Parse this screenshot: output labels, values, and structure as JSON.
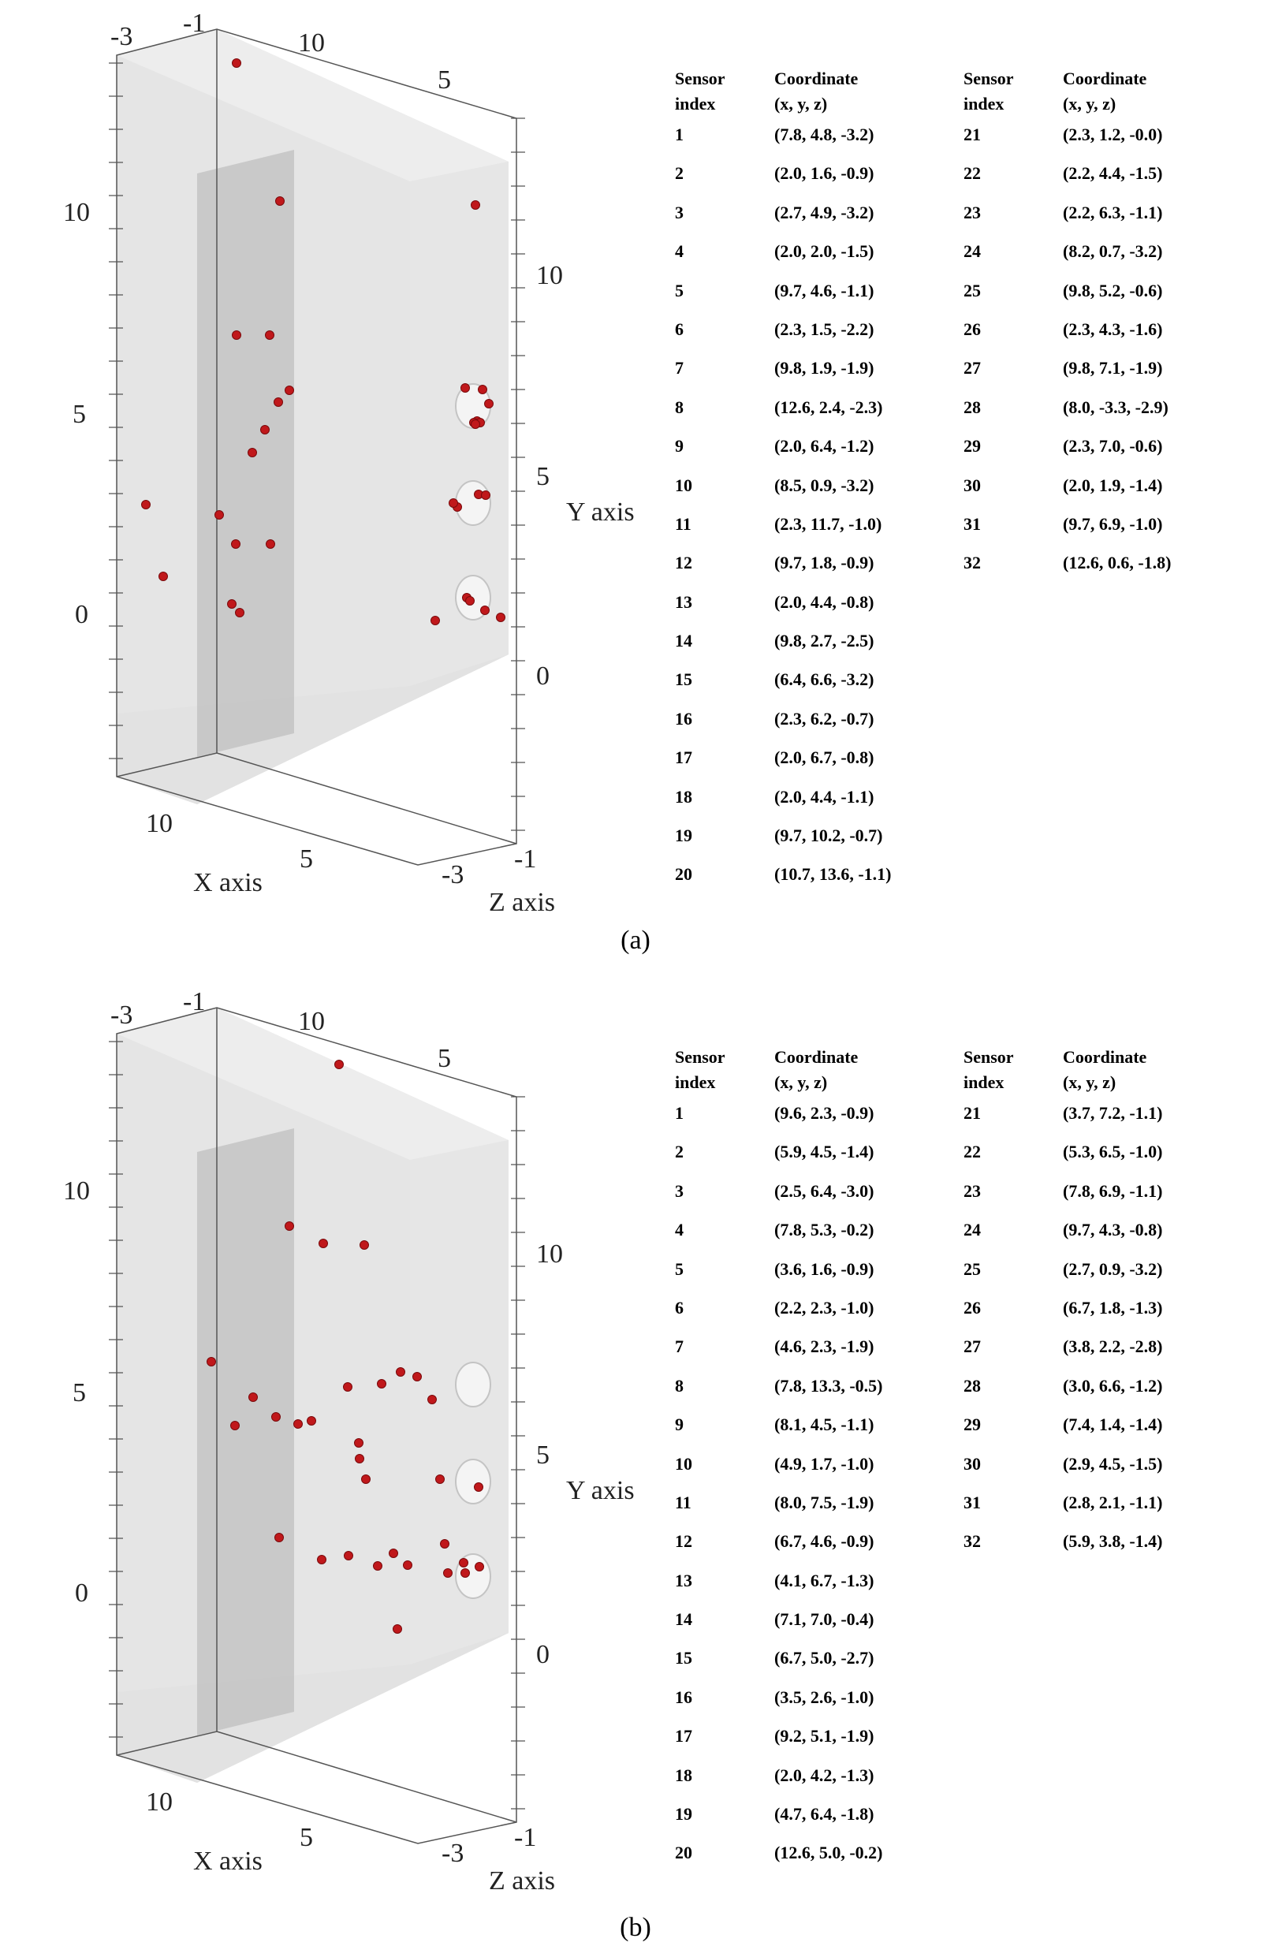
{
  "figure": {
    "panels": [
      {
        "id": "a",
        "caption": "(a)",
        "plot": {
          "x_axis_label": "X axis",
          "y_axis_label": "Y axis",
          "z_axis_label": "Z axis",
          "ticks": {
            "top_left_neg3": "-3",
            "top_left_neg1": "-1",
            "top_10": "10",
            "top_5": "5",
            "left_10": "10",
            "left_5": "5",
            "left_0": "0",
            "right_10": "10",
            "right_5": "5",
            "right_0": "0",
            "bottom_10": "10",
            "bottom_5": "5",
            "bottom_neg3": "-3",
            "bottom_neg1": "-1"
          },
          "sensor_count": 32,
          "marker_color": "#c0181b"
        },
        "table": {
          "header_sensor": [
            "Sensor",
            "index"
          ],
          "header_coord": [
            "Coordinate",
            "(x, y, z)"
          ],
          "left_rows": [
            {
              "index": "1",
              "coord": "(7.8, 4.8, -3.2)"
            },
            {
              "index": "2",
              "coord": "(2.0, 1.6, -0.9)"
            },
            {
              "index": "3",
              "coord": "(2.7, 4.9, -3.2)"
            },
            {
              "index": "4",
              "coord": "(2.0, 2.0, -1.5)"
            },
            {
              "index": "5",
              "coord": "(9.7, 4.6, -1.1)"
            },
            {
              "index": "6",
              "coord": "(2.3, 1.5, -2.2)"
            },
            {
              "index": "7",
              "coord": "(9.8, 1.9, -1.9)"
            },
            {
              "index": "8",
              "coord": "(12.6, 2.4, -2.3)"
            },
            {
              "index": "9",
              "coord": "(2.0, 6.4, -1.2)"
            },
            {
              "index": "10",
              "coord": "(8.5, 0.9, -3.2)"
            },
            {
              "index": "11",
              "coord": "(2.3, 11.7, -1.0)"
            },
            {
              "index": "12",
              "coord": "(9.7, 1.8, -0.9)"
            },
            {
              "index": "13",
              "coord": "(2.0, 4.4, -0.8)"
            },
            {
              "index": "14",
              "coord": "(9.8, 2.7, -2.5)"
            },
            {
              "index": "15",
              "coord": "(6.4, 6.6, -3.2)"
            },
            {
              "index": "16",
              "coord": "(2.3, 6.2, -0.7)"
            },
            {
              "index": "17",
              "coord": "(2.0, 6.7, -0.8)"
            },
            {
              "index": "18",
              "coord": "(2.0, 4.4, -1.1)"
            },
            {
              "index": "19",
              "coord": "(9.7, 10.2, -0.7)"
            },
            {
              "index": "20",
              "coord": "(10.7, 13.6, -1.1)"
            }
          ],
          "right_rows": [
            {
              "index": "21",
              "coord": "(2.3, 1.2, -0.0)"
            },
            {
              "index": "22",
              "coord": "(2.2, 4.4, -1.5)"
            },
            {
              "index": "23",
              "coord": "(2.2, 6.3, -1.1)"
            },
            {
              "index": "24",
              "coord": "(8.2, 0.7, -3.2)"
            },
            {
              "index": "25",
              "coord": "(9.8, 5.2, -0.6)"
            },
            {
              "index": "26",
              "coord": "(2.3, 4.3, -1.6)"
            },
            {
              "index": "27",
              "coord": "(9.8, 7.1, -1.9)"
            },
            {
              "index": "28",
              "coord": "(8.0, -3.3, -2.9)"
            },
            {
              "index": "29",
              "coord": "(2.3, 7.0, -0.6)"
            },
            {
              "index": "30",
              "coord": "(2.0, 1.9, -1.4)"
            },
            {
              "index": "31",
              "coord": "(9.7, 6.9, -1.0)"
            },
            {
              "index": "32",
              "coord": "(12.6, 0.6, -1.8)"
            }
          ]
        }
      },
      {
        "id": "b",
        "caption": "(b)",
        "plot": {
          "x_axis_label": "X axis",
          "y_axis_label": "Y axis",
          "z_axis_label": "Z axis",
          "ticks": {
            "top_left_neg3": "-3",
            "top_left_neg1": "-1",
            "top_10": "10",
            "top_5": "5",
            "left_10": "10",
            "left_5": "5",
            "left_0": "0",
            "right_10": "10",
            "right_5": "5",
            "right_0": "0",
            "bottom_10": "10",
            "bottom_5": "5",
            "bottom_neg3": "-3",
            "bottom_neg1": "-1"
          },
          "sensor_count": 32,
          "marker_color": "#c0181b"
        },
        "table": {
          "header_sensor": [
            "Sensor",
            "index"
          ],
          "header_coord": [
            "Coordinate",
            "(x, y, z)"
          ],
          "left_rows": [
            {
              "index": "1",
              "coord": "(9.6, 2.3, -0.9)"
            },
            {
              "index": "2",
              "coord": "(5.9, 4.5, -1.4)"
            },
            {
              "index": "3",
              "coord": "(2.5, 6.4, -3.0)"
            },
            {
              "index": "4",
              "coord": "(7.8, 5.3, -0.2)"
            },
            {
              "index": "5",
              "coord": "(3.6, 1.6, -0.9)"
            },
            {
              "index": "6",
              "coord": "(2.2, 2.3, -1.0)"
            },
            {
              "index": "7",
              "coord": "(4.6, 2.3, -1.9)"
            },
            {
              "index": "8",
              "coord": "(7.8, 13.3, -0.5)"
            },
            {
              "index": "9",
              "coord": "(8.1, 4.5, -1.1)"
            },
            {
              "index": "10",
              "coord": "(4.9, 1.7, -1.0)"
            },
            {
              "index": "11",
              "coord": "(8.0, 7.5, -1.9)"
            },
            {
              "index": "12",
              "coord": "(6.7, 4.6, -0.9)"
            },
            {
              "index": "13",
              "coord": "(4.1, 6.7, -1.3)"
            },
            {
              "index": "14",
              "coord": "(7.1, 7.0, -0.4)"
            },
            {
              "index": "15",
              "coord": "(6.7, 5.0, -2.7)"
            },
            {
              "index": "16",
              "coord": "(3.5, 2.6, -1.0)"
            },
            {
              "index": "17",
              "coord": "(9.2, 5.1, -1.9)"
            },
            {
              "index": "18",
              "coord": "(2.0, 4.2, -1.3)"
            },
            {
              "index": "19",
              "coord": "(4.7, 6.4, -1.8)"
            },
            {
              "index": "20",
              "coord": "(12.6, 5.0, -0.2)"
            }
          ],
          "right_rows": [
            {
              "index": "21",
              "coord": "(3.7, 7.2, -1.1)"
            },
            {
              "index": "22",
              "coord": "(5.3, 6.5, -1.0)"
            },
            {
              "index": "23",
              "coord": "(7.8, 6.9, -1.1)"
            },
            {
              "index": "24",
              "coord": "(9.7, 4.3, -0.8)"
            },
            {
              "index": "25",
              "coord": "(2.7, 0.9, -3.2)"
            },
            {
              "index": "26",
              "coord": "(6.7, 1.8, -1.3)"
            },
            {
              "index": "27",
              "coord": "(3.8, 2.2, -2.8)"
            },
            {
              "index": "28",
              "coord": "(3.0, 6.6, -1.2)"
            },
            {
              "index": "29",
              "coord": "(7.4, 1.4, -1.4)"
            },
            {
              "index": "30",
              "coord": "(2.9, 4.5, -1.5)"
            },
            {
              "index": "31",
              "coord": "(2.8, 2.1, -1.1)"
            },
            {
              "index": "32",
              "coord": "(5.9, 3.8, -1.4)"
            }
          ]
        }
      }
    ]
  }
}
